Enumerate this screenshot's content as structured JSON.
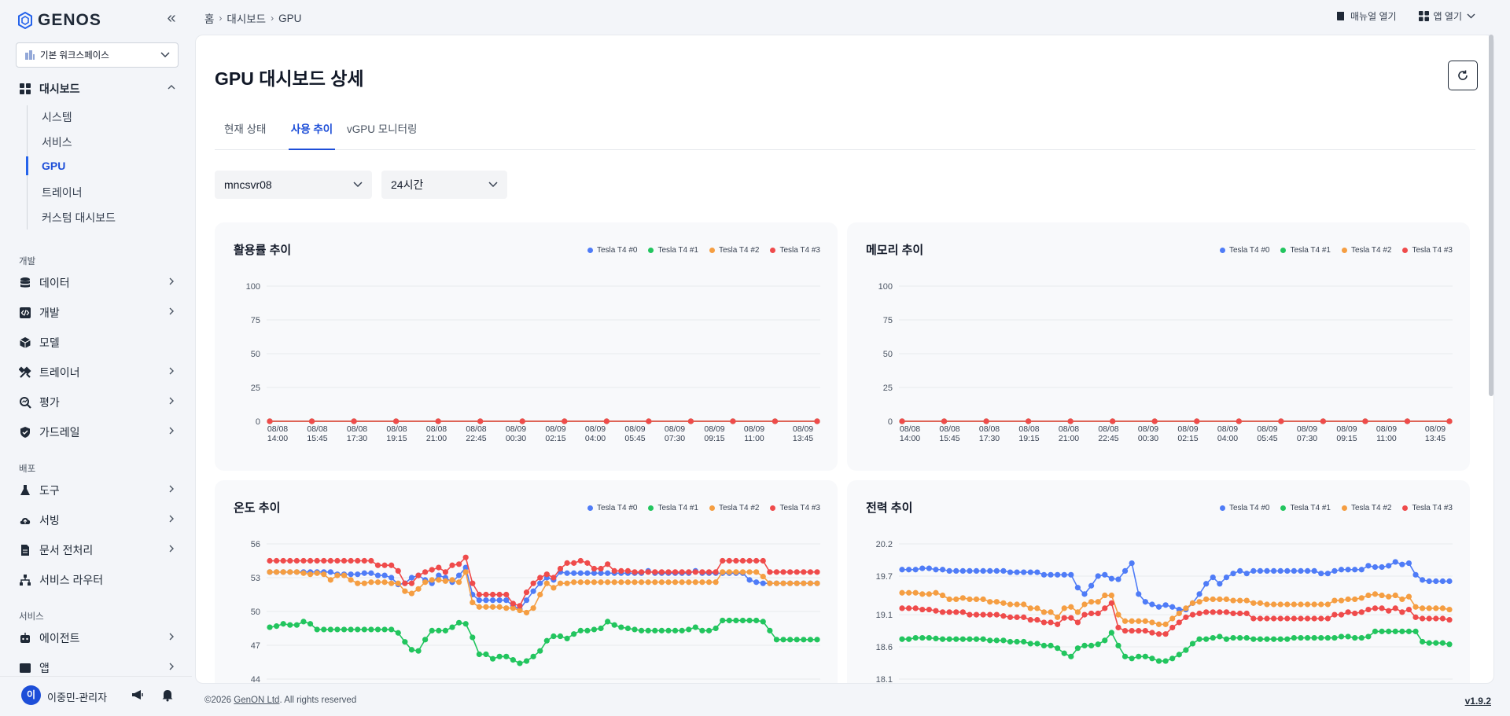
{
  "app": {
    "logo": "GENOS",
    "workspace": "기본 워크스페이스"
  },
  "sidebar": {
    "dashboard": {
      "label": "대시보드",
      "subs": [
        "시스템",
        "서비스",
        "GPU",
        "트레이너",
        "커스텀 대시보드"
      ]
    },
    "sections": [
      {
        "label": "개발",
        "items": [
          "데이터",
          "개발",
          "모델",
          "트레이너",
          "평가",
          "가드레일"
        ]
      },
      {
        "label": "배포",
        "items": [
          "도구",
          "서빙",
          "문서 전처리",
          "서비스 라우터"
        ]
      },
      {
        "label": "서비스",
        "items": [
          "에이전트",
          "앱"
        ]
      }
    ],
    "user": {
      "initial": "이",
      "name": "이중민-관리자"
    }
  },
  "breadcrumb": [
    "홈",
    "대시보드",
    "GPU"
  ],
  "top_actions": {
    "manual": "매뉴얼 열기",
    "apps": "앱 열기"
  },
  "page": {
    "title": "GPU 대시보드 상세"
  },
  "tabs": [
    "현재 상태",
    "사용 추이",
    "vGPU 모니터링"
  ],
  "filters": {
    "server": "mncsvr08",
    "range": "24시간"
  },
  "colors": {
    "series": [
      "#4f7cf7",
      "#22c55e",
      "#f59e42",
      "#ef4b4b"
    ],
    "accent": "#1d4ed8"
  },
  "chart_data": [
    {
      "type": "line",
      "title": "활용률 추이",
      "x": [
        "08/08 14:00",
        "08/08 15:45",
        "08/08 17:30",
        "08/08 19:15",
        "08/08 21:00",
        "08/08 22:45",
        "08/09 00:30",
        "08/09 02:15",
        "08/09 04:00",
        "08/09 05:45",
        "08/09 07:30",
        "08/09 09:15",
        "08/09 11:00",
        "08/09 13:45"
      ],
      "yticks": [
        0,
        25,
        50,
        75,
        100
      ],
      "ylim": [
        0,
        100
      ],
      "series": [
        {
          "name": "Tesla T4 #0",
          "values": [
            0,
            0,
            0,
            0,
            0,
            0,
            0,
            0,
            0,
            0,
            0,
            0,
            0,
            0
          ]
        },
        {
          "name": "Tesla T4 #1",
          "values": [
            0,
            0,
            0,
            0,
            0,
            0,
            0,
            0,
            0,
            0,
            0,
            0,
            0,
            0
          ]
        },
        {
          "name": "Tesla T4 #2",
          "values": [
            0,
            0,
            0,
            0,
            0,
            0,
            0,
            0,
            0,
            0,
            0,
            0,
            0,
            0
          ]
        },
        {
          "name": "Tesla T4 #3",
          "values": [
            0,
            0,
            0,
            0,
            0,
            0,
            0,
            0,
            0,
            0,
            0,
            0,
            0,
            0
          ]
        }
      ],
      "legend": "top-right"
    },
    {
      "type": "line",
      "title": "메모리 추이",
      "x": [
        "08/08 14:00",
        "08/08 15:45",
        "08/08 17:30",
        "08/08 19:15",
        "08/08 21:00",
        "08/08 22:45",
        "08/09 00:30",
        "08/09 02:15",
        "08/09 04:00",
        "08/09 05:45",
        "08/09 07:30",
        "08/09 09:15",
        "08/09 11:00",
        "08/09 13:45"
      ],
      "yticks": [
        0,
        25,
        50,
        75,
        100
      ],
      "ylim": [
        0,
        100
      ],
      "series": [
        {
          "name": "Tesla T4 #0",
          "values": [
            0,
            0,
            0,
            0,
            0,
            0,
            0,
            0,
            0,
            0,
            0,
            0,
            0,
            0
          ]
        },
        {
          "name": "Tesla T4 #1",
          "values": [
            0,
            0,
            0,
            0,
            0,
            0,
            0,
            0,
            0,
            0,
            0,
            0,
            0,
            0
          ]
        },
        {
          "name": "Tesla T4 #2",
          "values": [
            0,
            0,
            0,
            0,
            0,
            0,
            0,
            0,
            0,
            0,
            0,
            0,
            0,
            0
          ]
        },
        {
          "name": "Tesla T4 #3",
          "values": [
            0,
            0,
            0,
            0,
            0,
            0,
            0,
            0,
            0,
            0,
            0,
            0,
            0,
            0
          ]
        }
      ],
      "legend": "top-right"
    },
    {
      "type": "line",
      "title": "온도 추이",
      "yticks": [
        44,
        47,
        50,
        53,
        56
      ],
      "ylim": [
        44,
        56
      ],
      "series": [
        {
          "name": "Tesla T4 #0",
          "values": [
            53.5,
            53.5,
            53.5,
            53.5,
            53.5,
            53.5,
            53.5,
            53.5,
            53.5,
            53.5,
            53.3,
            53.3,
            53.3,
            53.3,
            53.4,
            53.4,
            53.2,
            53.2,
            53,
            52.4,
            52.5,
            53,
            53.2,
            52.8,
            52.5,
            53.2,
            53,
            52.6,
            53.2,
            53.9,
            51.5,
            51,
            51,
            51,
            51,
            51,
            50.5,
            50.2,
            51,
            51.8,
            52.5,
            53,
            52.8,
            53.5,
            53.4,
            53.4,
            53.4,
            53.4,
            53.4,
            53.4,
            53.4,
            53.4,
            53.4,
            53.4,
            53.4,
            53.4,
            53.6,
            53.4,
            53.4,
            53.4,
            53.4,
            53.4,
            53.4,
            53.6,
            53.4,
            53.4,
            53.4,
            53.4,
            53.4,
            53.4,
            53.4,
            52.8,
            52.6,
            52.5,
            52.5,
            52.5,
            52.5,
            52.5,
            52.5,
            52.5,
            52.5,
            52.5
          ]
        },
        {
          "name": "Tesla T4 #1",
          "values": [
            48.6,
            48.7,
            48.9,
            48.8,
            48.8,
            49.1,
            48.9,
            48.4,
            48.4,
            48.4,
            48.4,
            48.4,
            48.4,
            48.4,
            48.4,
            48.4,
            48.4,
            48.4,
            48.4,
            48.1,
            47.3,
            46.6,
            46.5,
            47.5,
            48.3,
            48.3,
            48.3,
            48.6,
            49,
            48.9,
            47.7,
            46.2,
            46.2,
            45.8,
            46,
            46,
            45.7,
            45.4,
            45.6,
            46,
            46.5,
            47.4,
            47.8,
            47.8,
            47.6,
            48,
            48.3,
            48.3,
            48.4,
            48.5,
            49.1,
            48.8,
            48.6,
            48.5,
            48.4,
            48.3,
            48.3,
            48.3,
            48.3,
            48.3,
            48.3,
            48.3,
            48.4,
            48.6,
            48.3,
            48.3,
            48.5,
            49.2,
            49.2,
            49.2,
            49.2,
            49.2,
            49.2,
            49.1,
            48.3,
            47.5,
            47.5,
            47.5,
            47.5,
            47.5,
            47.5,
            47.5
          ]
        },
        {
          "name": "Tesla T4 #2",
          "values": [
            53.5,
            53.5,
            53.5,
            53.5,
            53.5,
            53.4,
            53.3,
            53.4,
            53.3,
            52.8,
            53.2,
            53.2,
            52.8,
            52.5,
            52.5,
            52.6,
            52.6,
            52.6,
            52.5,
            52.5,
            51.8,
            51.6,
            52,
            52.6,
            52.8,
            52.8,
            52.7,
            52.8,
            52.6,
            53.5,
            50.8,
            50.4,
            50.4,
            50.4,
            50.4,
            50.3,
            50.3,
            50.1,
            49.9,
            50.3,
            51.5,
            52.5,
            52.1,
            52.5,
            52.5,
            52.6,
            52.6,
            52.6,
            52.6,
            52.6,
            52.6,
            52.6,
            52.6,
            52.6,
            52.6,
            52.6,
            52.6,
            52.6,
            52.6,
            52.6,
            52.6,
            52.6,
            52.6,
            52.6,
            52.6,
            52.6,
            52.6,
            53.5,
            53.5,
            53.5,
            53.5,
            53.5,
            53.5,
            53.1,
            52.5,
            52.5,
            52.5,
            52.5,
            52.5,
            52.5,
            52.5,
            52.5
          ]
        },
        {
          "name": "Tesla T4 #3",
          "values": [
            54.5,
            54.5,
            54.5,
            54.5,
            54.5,
            54.5,
            54.5,
            54.5,
            54.5,
            54.5,
            54.5,
            54.5,
            54.5,
            54.5,
            54.5,
            54.5,
            54.1,
            54.1,
            54.1,
            53.6,
            52.5,
            52.5,
            53.2,
            53.5,
            53.7,
            53.9,
            53.5,
            54.1,
            54.2,
            54.8,
            52.5,
            51.5,
            51.5,
            51.5,
            51.5,
            51.5,
            50.7,
            50.5,
            51.7,
            52.5,
            53,
            53.3,
            53,
            53.8,
            54.3,
            54.3,
            54.5,
            54.3,
            53.8,
            53.8,
            54.2,
            53.6,
            53.6,
            53.6,
            53.5,
            53.5,
            53.5,
            53.5,
            53.5,
            53.5,
            53.5,
            53.5,
            53.5,
            53.5,
            53.5,
            53.5,
            53.5,
            54.5,
            54.5,
            54.5,
            54.5,
            54.5,
            54.5,
            54.5,
            53.5,
            53.5,
            53.5,
            53.5,
            53.5,
            53.5,
            53.5,
            53.5
          ]
        }
      ],
      "legend": "top-right"
    },
    {
      "type": "line",
      "title": "전력 추이",
      "yticks": [
        18.1,
        18.6,
        19.1,
        19.7,
        20.2
      ],
      "ylim": [
        18.1,
        20.2
      ],
      "series": [
        {
          "name": "Tesla T4 #0",
          "values": [
            19.8,
            19.8,
            19.8,
            19.82,
            19.82,
            19.8,
            19.8,
            19.78,
            19.78,
            19.78,
            19.78,
            19.78,
            19.78,
            19.78,
            19.78,
            19.78,
            19.76,
            19.76,
            19.76,
            19.76,
            19.76,
            19.72,
            19.72,
            19.72,
            19.72,
            19.72,
            19.52,
            19.42,
            19.55,
            19.7,
            19.72,
            19.66,
            19.65,
            19.78,
            19.9,
            19.42,
            19.3,
            19.26,
            19.22,
            19.25,
            19.22,
            19.18,
            19.18,
            19.28,
            19.42,
            19.58,
            19.68,
            19.58,
            19.68,
            19.74,
            19.78,
            19.74,
            19.78,
            19.78,
            19.78,
            19.78,
            19.78,
            19.78,
            19.78,
            19.78,
            19.78,
            19.78,
            19.74,
            19.74,
            19.78,
            19.8,
            19.8,
            19.8,
            19.8,
            19.86,
            19.84,
            19.84,
            19.86,
            19.92,
            19.88,
            19.9,
            19.72,
            19.64,
            19.62,
            19.62,
            19.62,
            19.62
          ]
        },
        {
          "name": "Tesla T4 #1",
          "values": [
            18.72,
            18.72,
            18.74,
            18.74,
            18.74,
            18.73,
            18.72,
            18.72,
            18.72,
            18.72,
            18.72,
            18.72,
            18.72,
            18.7,
            18.7,
            18.7,
            18.68,
            18.68,
            18.68,
            18.65,
            18.65,
            18.62,
            18.62,
            18.58,
            18.5,
            18.45,
            18.58,
            18.62,
            18.62,
            18.64,
            18.7,
            18.82,
            18.62,
            18.45,
            18.42,
            18.45,
            18.45,
            18.42,
            18.38,
            18.38,
            18.42,
            18.48,
            18.55,
            18.65,
            18.72,
            18.72,
            18.74,
            18.76,
            18.72,
            18.74,
            18.74,
            18.74,
            18.72,
            18.72,
            18.72,
            18.72,
            18.72,
            18.72,
            18.74,
            18.74,
            18.74,
            18.74,
            18.74,
            18.74,
            18.74,
            18.76,
            18.76,
            18.74,
            18.74,
            18.76,
            18.84,
            18.84,
            18.84,
            18.84,
            18.84,
            18.84,
            18.84,
            18.68,
            18.66,
            18.66,
            18.66,
            18.64
          ]
        },
        {
          "name": "Tesla T4 #2",
          "values": [
            19.44,
            19.44,
            19.44,
            19.42,
            19.42,
            19.44,
            19.4,
            19.34,
            19.34,
            19.36,
            19.34,
            19.34,
            19.34,
            19.3,
            19.3,
            19.28,
            19.26,
            19.26,
            19.26,
            19.2,
            19.2,
            19.14,
            19.14,
            19.06,
            19.2,
            19.22,
            19.14,
            19.26,
            19.3,
            19.3,
            19.4,
            19.4,
            19.1,
            19,
            19,
            19,
            19,
            18.98,
            18.95,
            18.95,
            19.04,
            19.12,
            19.2,
            19.28,
            19.3,
            19.34,
            19.34,
            19.34,
            19.34,
            19.32,
            19.32,
            19.32,
            19.28,
            19.28,
            19.26,
            19.26,
            19.26,
            19.26,
            19.26,
            19.26,
            19.26,
            19.26,
            19.26,
            19.26,
            19.32,
            19.32,
            19.34,
            19.34,
            19.36,
            19.4,
            19.42,
            19.4,
            19.38,
            19.4,
            19.34,
            19.38,
            19.22,
            19.2,
            19.2,
            19.2,
            19.2,
            19.18
          ]
        },
        {
          "name": "Tesla T4 #3",
          "values": [
            19.2,
            19.2,
            19.2,
            19.18,
            19.18,
            19.16,
            19.14,
            19.14,
            19.14,
            19.14,
            19.1,
            19.1,
            19.1,
            19.1,
            19.1,
            19.08,
            19.06,
            19.06,
            19.06,
            19.02,
            19.02,
            18.98,
            18.98,
            18.95,
            19.05,
            19.05,
            18.98,
            19.1,
            19.12,
            19.12,
            19.2,
            19.28,
            18.9,
            18.85,
            18.85,
            18.85,
            18.85,
            18.82,
            18.8,
            18.8,
            18.9,
            18.98,
            19.06,
            19.1,
            19.12,
            19.14,
            19.14,
            19.14,
            19.14,
            19.12,
            19.12,
            19.12,
            19.04,
            19.04,
            19.04,
            19.04,
            19.04,
            19.04,
            19.04,
            19.04,
            19.04,
            19.04,
            19.04,
            19.04,
            19.1,
            19.1,
            19.14,
            19.12,
            19.14,
            19.18,
            19.2,
            19.2,
            19.16,
            19.2,
            19.14,
            19.18,
            19.06,
            19.04,
            19.04,
            19.04,
            19.04,
            19.02
          ]
        }
      ],
      "legend": "top-right"
    }
  ],
  "footer": {
    "copyright": "©2026",
    "company": "GenON Ltd",
    "rights": ". All rights reserved",
    "version": "v1.9.2"
  }
}
